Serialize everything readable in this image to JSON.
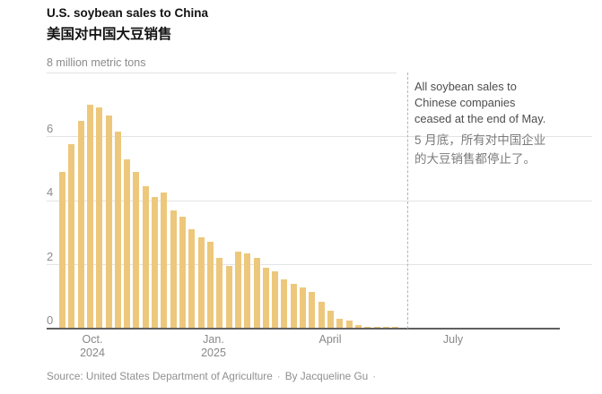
{
  "header": {
    "title_en": "U.S. soybean sales to China",
    "title_zh": "美国对中国大豆销售"
  },
  "chart_data": {
    "type": "bar",
    "title": "U.S. soybean sales to China",
    "title_zh": "美国对中国大豆销售",
    "unit_label": "8 million metric tons",
    "ylabel": "million metric tons",
    "ylim": [
      0,
      8
    ],
    "yticks": [
      0,
      2,
      4,
      6
    ],
    "grid": true,
    "bar_color": "#edc87c",
    "values": [
      4.9,
      5.75,
      6.5,
      7.0,
      6.9,
      6.65,
      6.15,
      5.3,
      4.9,
      4.45,
      4.1,
      4.25,
      3.7,
      3.5,
      3.1,
      2.85,
      2.7,
      2.2,
      1.95,
      2.4,
      2.35,
      2.2,
      1.9,
      1.8,
      1.55,
      1.4,
      1.3,
      1.15,
      0.85,
      0.55,
      0.3,
      0.25,
      0.12,
      0.06,
      0.06,
      0.06,
      0.05
    ],
    "x_ticks": [
      {
        "line1": "Oct.",
        "line2": "2024",
        "x": 103
      },
      {
        "line1": "Jan.",
        "line2": "2025",
        "x": 238
      },
      {
        "line1": "April",
        "line2": "",
        "x": 368
      },
      {
        "line1": "July",
        "line2": "",
        "x": 505
      }
    ],
    "event_line": {
      "x": 454
    },
    "annotation": {
      "en_lines": [
        "All soybean sales to",
        "Chinese companies",
        "ceased at the end of May."
      ],
      "zh_lines": [
        "5 月底，所有对中国企业",
        "的大豆销售都停止了。"
      ]
    }
  },
  "footer": {
    "source": "Source: United States Department of Agriculture",
    "separator": "·",
    "byline": "By Jacqueline Gu"
  }
}
